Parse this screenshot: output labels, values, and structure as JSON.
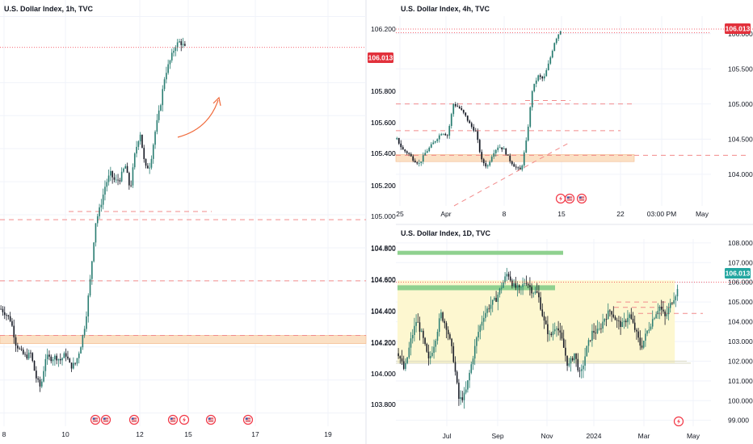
{
  "colors": {
    "bull": "#2a7d72",
    "bear": "#161a25",
    "price_line": "#f23645",
    "price_badge": "#e2313c",
    "price_badge_alt": "#22a6a0",
    "level_dash": "#f28b8b",
    "zone": "#fbe0c4",
    "green_zone": "#8fd18f",
    "range_zone": "#fdf7d0",
    "arrow": "#f0693a",
    "grid": "#f0f3fa"
  },
  "icons": [
    "us-flag-icon",
    "lightning-icon"
  ],
  "chart_data": [
    {
      "id": "h1",
      "type": "candlestick",
      "title": "U.S. Dollar Index, 1h, TVC",
      "x_ticks": [
        "8",
        "10",
        "12",
        "15",
        "17",
        "19"
      ],
      "y_ticks": [
        "106.200",
        "105.800",
        "105.600",
        "105.400",
        "105.200",
        "105.000",
        "104.800",
        "104.600",
        "104.400",
        "104.200",
        "104.000",
        "103.800"
      ],
      "ylim": [
        103.72,
        106.3
      ],
      "last_price": 106.013,
      "last_price_label": "106.013",
      "close_path": [
        104.43,
        104.4,
        104.36,
        104.22,
        104.17,
        104.14,
        104.16,
        104.02,
        103.95,
        104.14,
        104.13,
        104.14,
        104.12,
        104.16,
        104.08,
        104.1,
        104.2,
        104.35,
        104.62,
        104.95,
        105.05,
        105.18,
        105.25,
        105.2,
        105.22,
        105.3,
        105.15,
        105.38,
        105.5,
        105.28,
        105.3,
        105.5,
        105.65,
        105.85,
        105.93,
        106.02,
        106.05,
        106.01
      ],
      "levels_dashed": [
        105.02,
        104.97,
        104.6,
        104.27
      ],
      "zone": [
        104.22,
        104.27
      ]
    },
    {
      "id": "h4",
      "type": "candlestick",
      "title": "U.S. Dollar Index, 4h, TVC",
      "x_ticks": [
        "25",
        "Apr",
        "8",
        "15",
        "22",
        "03:00 PM",
        "May"
      ],
      "y_ticks": [
        "106.000",
        "105.500",
        "105.000",
        "104.500",
        "104.000"
      ],
      "ylim": [
        103.55,
        106.25
      ],
      "last_price": 106.013,
      "last_price_label": "106.013",
      "close_path": [
        104.5,
        104.35,
        104.3,
        104.2,
        104.15,
        104.3,
        104.4,
        104.5,
        104.6,
        104.55,
        105.0,
        104.95,
        104.85,
        104.7,
        104.6,
        104.2,
        104.1,
        104.3,
        104.4,
        104.35,
        104.2,
        104.1,
        104.05,
        104.5,
        105.2,
        105.4,
        105.35,
        105.6,
        105.9,
        106.05
      ],
      "levels_dashed": [
        105.05,
        105.0,
        104.62,
        104.27
      ],
      "zone": [
        104.18,
        104.28
      ]
    },
    {
      "id": "d1",
      "type": "candlestick",
      "title": "U.S. Dollar Index, 1D, TVC",
      "x_ticks": [
        "Jul",
        "Sep",
        "Nov",
        "2024",
        "Mar",
        "May"
      ],
      "y_ticks": [
        "108.000",
        "107.000",
        "106.000",
        "105.000",
        "104.000",
        "103.000",
        "102.000",
        "101.000",
        "100.000",
        "99.000"
      ],
      "ylim": [
        98.7,
        108.2
      ],
      "last_price": 106.013,
      "last_price_label": "106.013",
      "close_path": [
        102.4,
        101.5,
        103.0,
        104.1,
        103.2,
        102.0,
        103.0,
        104.4,
        103.7,
        102.3,
        100.0,
        100.3,
        101.8,
        103.3,
        104.3,
        104.8,
        105.1,
        105.8,
        106.5,
        105.8,
        105.6,
        106.1,
        105.6,
        105.4,
        104.0,
        103.2,
        103.9,
        103.0,
        101.7,
        102.4,
        101.2,
        102.6,
        103.5,
        103.5,
        104.2,
        104.6,
        104.0,
        103.8,
        104.4,
        103.6,
        102.7,
        103.5,
        104.2,
        104.8,
        104.2,
        105.0,
        105.6
      ],
      "levels_dashed": [
        104.42,
        104.73,
        105.0
      ],
      "green_zones": [
        [
          107.4,
          107.6
        ],
        [
          105.6,
          105.85
        ]
      ],
      "range_zone": [
        101.9,
        106.1
      ]
    }
  ]
}
